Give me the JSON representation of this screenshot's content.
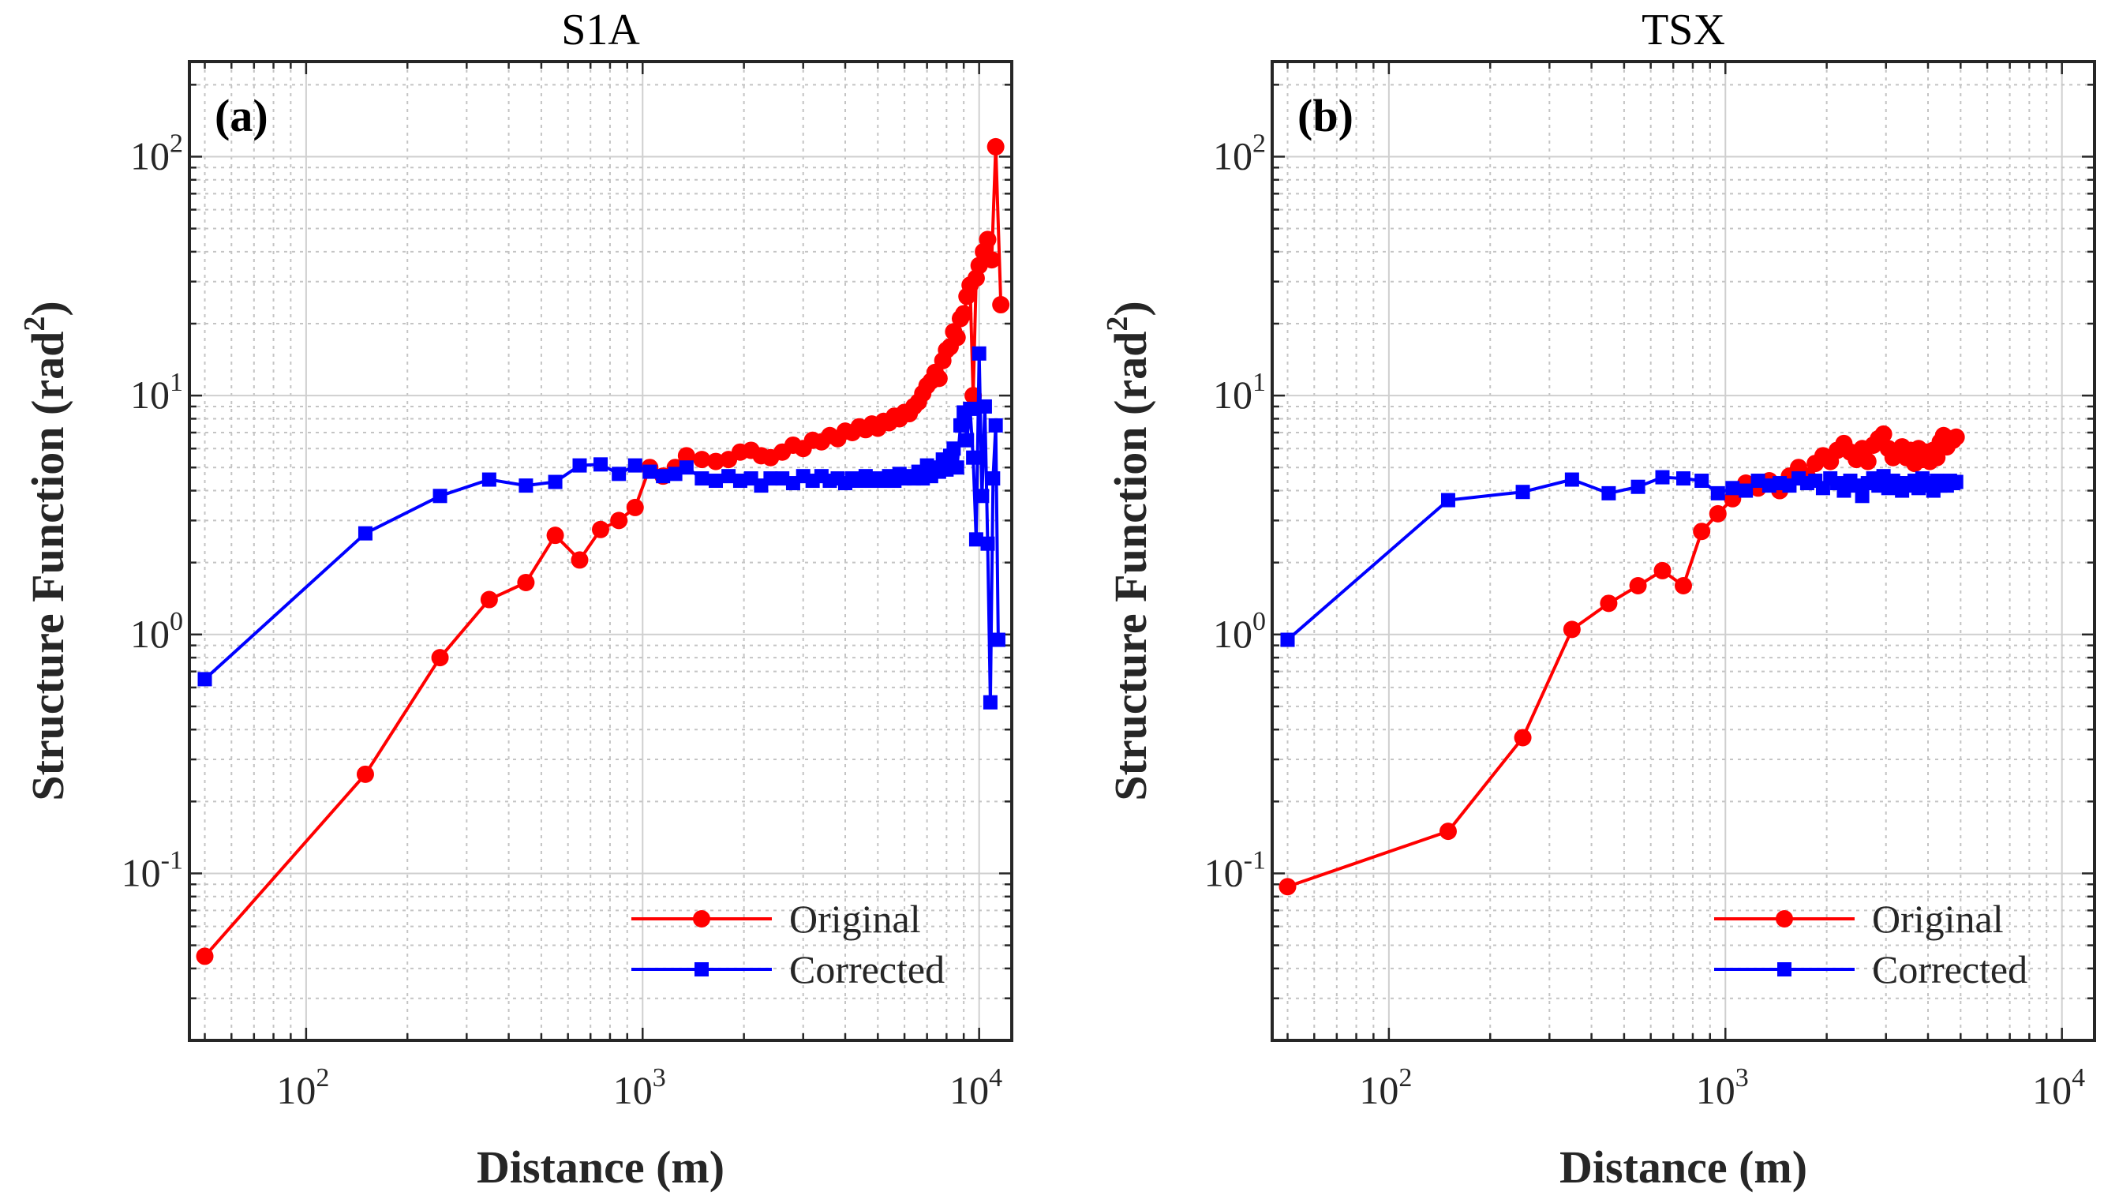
{
  "chart_data": [
    {
      "type": "line",
      "title": "S1A",
      "panel_label": "(a)",
      "xlabel": "Distance (m)",
      "ylabel": {
        "main": "Structure Function (rad",
        "sup": "2",
        "tail": ")"
      },
      "xscale": "log",
      "yscale": "log",
      "xlim": [
        45,
        12500
      ],
      "ylim": [
        0.02,
        250
      ],
      "grid": true,
      "xticks": [
        {
          "base": "10",
          "exp": "2",
          "value": 100
        },
        {
          "base": "10",
          "exp": "3",
          "value": 1000
        },
        {
          "base": "10",
          "exp": "4",
          "value": 10000
        }
      ],
      "yticks": [
        {
          "base": "10",
          "exp": "-1",
          "value": 0.1
        },
        {
          "base": "10",
          "exp": "0",
          "value": 1
        },
        {
          "base": "10",
          "exp": "1",
          "value": 10
        },
        {
          "base": "10",
          "exp": "2",
          "value": 100
        }
      ],
      "legend_position": "bottom-right",
      "series": [
        {
          "name": "Original",
          "color": "#ff0000",
          "marker": "circle",
          "points": [
            [
              50,
              0.045
            ],
            [
              150,
              0.26
            ],
            [
              250,
              0.8
            ],
            [
              350,
              1.4
            ],
            [
              450,
              1.65
            ],
            [
              550,
              2.6
            ],
            [
              650,
              2.05
            ],
            [
              750,
              2.75
            ],
            [
              850,
              3.0
            ],
            [
              950,
              3.4
            ],
            [
              1050,
              5.0
            ],
            [
              1150,
              4.6
            ],
            [
              1250,
              5.0
            ],
            [
              1350,
              5.6
            ],
            [
              1500,
              5.4
            ],
            [
              1650,
              5.3
            ],
            [
              1800,
              5.4
            ],
            [
              1950,
              5.8
            ],
            [
              2100,
              5.9
            ],
            [
              2250,
              5.6
            ],
            [
              2400,
              5.5
            ],
            [
              2600,
              5.8
            ],
            [
              2800,
              6.2
            ],
            [
              3000,
              6.0
            ],
            [
              3200,
              6.5
            ],
            [
              3400,
              6.4
            ],
            [
              3600,
              6.8
            ],
            [
              3800,
              6.6
            ],
            [
              4000,
              7.1
            ],
            [
              4200,
              7.0
            ],
            [
              4400,
              7.4
            ],
            [
              4600,
              7.2
            ],
            [
              4800,
              7.6
            ],
            [
              5000,
              7.3
            ],
            [
              5200,
              7.8
            ],
            [
              5400,
              7.7
            ],
            [
              5600,
              8.2
            ],
            [
              5800,
              8.0
            ],
            [
              6000,
              8.5
            ],
            [
              6200,
              8.4
            ],
            [
              6400,
              9.0
            ],
            [
              6600,
              9.4
            ],
            [
              6800,
              10.2
            ],
            [
              7000,
              11.0
            ],
            [
              7200,
              11.5
            ],
            [
              7400,
              12.5
            ],
            [
              7600,
              11.8
            ],
            [
              7800,
              14.0
            ],
            [
              8000,
              15.5
            ],
            [
              8200,
              16.0
            ],
            [
              8400,
              18.5
            ],
            [
              8600,
              17.5
            ],
            [
              8800,
              21.0
            ],
            [
              9000,
              22.0
            ],
            [
              9200,
              26.0
            ],
            [
              9400,
              29.0
            ],
            [
              9600,
              10.0
            ],
            [
              9800,
              31.0
            ],
            [
              10000,
              35.0
            ],
            [
              10300,
              40.0
            ],
            [
              10600,
              45.0
            ],
            [
              10900,
              37.0
            ],
            [
              11200,
              110.0
            ],
            [
              11600,
              24.0
            ]
          ]
        },
        {
          "name": "Corrected",
          "color": "#0000ff",
          "marker": "square",
          "points": [
            [
              50,
              0.65
            ],
            [
              150,
              2.65
            ],
            [
              250,
              3.8
            ],
            [
              350,
              4.45
            ],
            [
              450,
              4.2
            ],
            [
              550,
              4.35
            ],
            [
              650,
              5.1
            ],
            [
              750,
              5.15
            ],
            [
              850,
              4.7
            ],
            [
              950,
              5.1
            ],
            [
              1050,
              4.8
            ],
            [
              1150,
              4.6
            ],
            [
              1250,
              4.7
            ],
            [
              1350,
              5.0
            ],
            [
              1500,
              4.5
            ],
            [
              1650,
              4.4
            ],
            [
              1800,
              4.6
            ],
            [
              1950,
              4.4
            ],
            [
              2100,
              4.5
            ],
            [
              2250,
              4.2
            ],
            [
              2400,
              4.5
            ],
            [
              2600,
              4.5
            ],
            [
              2800,
              4.3
            ],
            [
              3000,
              4.6
            ],
            [
              3200,
              4.4
            ],
            [
              3400,
              4.6
            ],
            [
              3600,
              4.4
            ],
            [
              3800,
              4.5
            ],
            [
              4000,
              4.3
            ],
            [
              4200,
              4.5
            ],
            [
              4400,
              4.4
            ],
            [
              4600,
              4.6
            ],
            [
              4800,
              4.4
            ],
            [
              5000,
              4.5
            ],
            [
              5200,
              4.4
            ],
            [
              5400,
              4.6
            ],
            [
              5600,
              4.4
            ],
            [
              5800,
              4.7
            ],
            [
              6000,
              4.5
            ],
            [
              6200,
              4.6
            ],
            [
              6400,
              4.5
            ],
            [
              6600,
              4.8
            ],
            [
              6800,
              4.5
            ],
            [
              7000,
              5.1
            ],
            [
              7200,
              4.6
            ],
            [
              7400,
              5.0
            ],
            [
              7600,
              4.8
            ],
            [
              7800,
              5.4
            ],
            [
              8000,
              4.9
            ],
            [
              8200,
              5.6
            ],
            [
              8400,
              6.0
            ],
            [
              8600,
              5.0
            ],
            [
              8800,
              7.5
            ],
            [
              9000,
              8.5
            ],
            [
              9200,
              6.5
            ],
            [
              9400,
              8.8
            ],
            [
              9600,
              5.5
            ],
            [
              9800,
              2.5
            ],
            [
              10000,
              15.0
            ],
            [
              10200,
              3.8
            ],
            [
              10400,
              9.0
            ],
            [
              10600,
              2.4
            ],
            [
              10800,
              0.52
            ],
            [
              11000,
              4.5
            ],
            [
              11200,
              7.5
            ],
            [
              11400,
              0.95
            ]
          ]
        }
      ]
    },
    {
      "type": "line",
      "title": "TSX",
      "panel_label": "(b)",
      "xlabel": "Distance (m)",
      "ylabel": {
        "main": "Structure Function (rad",
        "sup": "2",
        "tail": ")"
      },
      "xscale": "log",
      "yscale": "log",
      "xlim": [
        45,
        12500
      ],
      "ylim": [
        0.02,
        250
      ],
      "grid": true,
      "xticks": [
        {
          "base": "10",
          "exp": "2",
          "value": 100
        },
        {
          "base": "10",
          "exp": "3",
          "value": 1000
        },
        {
          "base": "10",
          "exp": "4",
          "value": 10000
        }
      ],
      "yticks": [
        {
          "base": "10",
          "exp": "-1",
          "value": 0.1
        },
        {
          "base": "10",
          "exp": "0",
          "value": 1
        },
        {
          "base": "10",
          "exp": "1",
          "value": 10
        },
        {
          "base": "10",
          "exp": "2",
          "value": 100
        }
      ],
      "legend_position": "bottom-right",
      "series": [
        {
          "name": "Original",
          "color": "#ff0000",
          "marker": "circle",
          "points": [
            [
              50,
              0.088
            ],
            [
              150,
              0.15
            ],
            [
              250,
              0.37
            ],
            [
              350,
              1.05
            ],
            [
              450,
              1.35
            ],
            [
              550,
              1.6
            ],
            [
              650,
              1.85
            ],
            [
              750,
              1.6
            ],
            [
              850,
              2.7
            ],
            [
              950,
              3.2
            ],
            [
              1050,
              3.7
            ],
            [
              1150,
              4.3
            ],
            [
              1250,
              4.1
            ],
            [
              1350,
              4.4
            ],
            [
              1450,
              4.0
            ],
            [
              1550,
              4.6
            ],
            [
              1650,
              5.0
            ],
            [
              1750,
              4.6
            ],
            [
              1850,
              5.2
            ],
            [
              1950,
              5.6
            ],
            [
              2050,
              5.3
            ],
            [
              2150,
              5.9
            ],
            [
              2250,
              6.3
            ],
            [
              2350,
              5.8
            ],
            [
              2450,
              5.4
            ],
            [
              2550,
              6.0
            ],
            [
              2650,
              5.3
            ],
            [
              2750,
              6.2
            ],
            [
              2850,
              6.6
            ],
            [
              2950,
              6.9
            ],
            [
              3050,
              6.0
            ],
            [
              3150,
              5.5
            ],
            [
              3250,
              5.8
            ],
            [
              3350,
              6.1
            ],
            [
              3450,
              5.5
            ],
            [
              3550,
              5.9
            ],
            [
              3650,
              5.2
            ],
            [
              3750,
              6.0
            ],
            [
              3850,
              5.4
            ],
            [
              3950,
              5.8
            ],
            [
              4050,
              5.3
            ],
            [
              4150,
              5.9
            ],
            [
              4250,
              5.5
            ],
            [
              4350,
              6.4
            ],
            [
              4450,
              6.8
            ],
            [
              4550,
              6.1
            ],
            [
              4650,
              6.6
            ],
            [
              4750,
              6.5
            ],
            [
              4850,
              6.7
            ]
          ]
        },
        {
          "name": "Corrected",
          "color": "#0000ff",
          "marker": "square",
          "points": [
            [
              50,
              0.95
            ],
            [
              150,
              3.65
            ],
            [
              250,
              3.95
            ],
            [
              350,
              4.45
            ],
            [
              450,
              3.9
            ],
            [
              550,
              4.15
            ],
            [
              650,
              4.55
            ],
            [
              750,
              4.5
            ],
            [
              850,
              4.4
            ],
            [
              950,
              3.9
            ],
            [
              1050,
              4.1
            ],
            [
              1150,
              4.0
            ],
            [
              1250,
              4.4
            ],
            [
              1350,
              4.2
            ],
            [
              1450,
              4.3
            ],
            [
              1550,
              4.2
            ],
            [
              1650,
              4.5
            ],
            [
              1750,
              4.3
            ],
            [
              1850,
              4.4
            ],
            [
              1950,
              4.1
            ],
            [
              2050,
              4.5
            ],
            [
              2150,
              4.3
            ],
            [
              2250,
              4.0
            ],
            [
              2350,
              4.4
            ],
            [
              2450,
              4.2
            ],
            [
              2550,
              3.8
            ],
            [
              2650,
              4.3
            ],
            [
              2750,
              4.5
            ],
            [
              2850,
              4.2
            ],
            [
              2950,
              4.6
            ],
            [
              3050,
              4.1
            ],
            [
              3150,
              4.4
            ],
            [
              3250,
              4.3
            ],
            [
              3350,
              4.0
            ],
            [
              3450,
              4.3
            ],
            [
              3550,
              4.2
            ],
            [
              3650,
              4.4
            ],
            [
              3750,
              4.1
            ],
            [
              3850,
              4.5
            ],
            [
              3950,
              4.2
            ],
            [
              4050,
              4.3
            ],
            [
              4150,
              4.0
            ],
            [
              4250,
              4.4
            ],
            [
              4350,
              4.2
            ],
            [
              4450,
              4.3
            ],
            [
              4550,
              4.2
            ],
            [
              4650,
              4.4
            ],
            [
              4750,
              4.3
            ],
            [
              4850,
              4.35
            ]
          ]
        }
      ]
    }
  ]
}
